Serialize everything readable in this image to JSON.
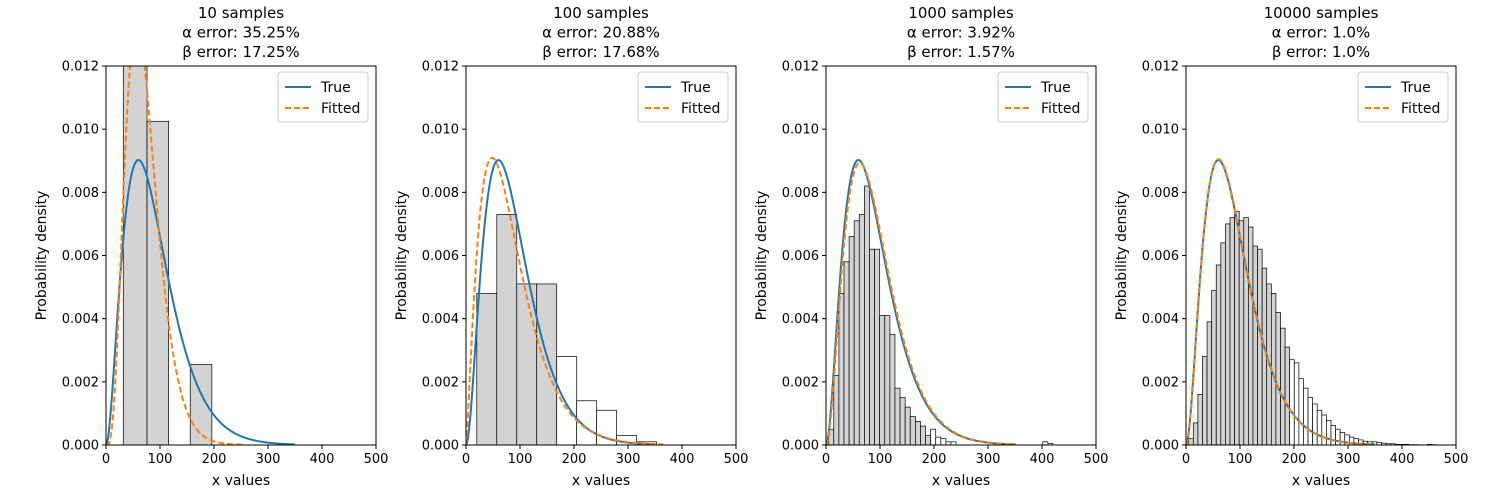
{
  "chart_data": [
    {
      "type": "bar",
      "title": [
        "10 samples",
        "α error: 35.25%",
        "β error: 17.25%"
      ],
      "xlabel": "x values",
      "ylabel": "Probability density",
      "xlim": [
        0,
        500
      ],
      "ylim": [
        0,
        0.012
      ],
      "xticks": [
        "0",
        "100",
        "200",
        "300",
        "400",
        "500"
      ],
      "yticks": [
        "0.000",
        "0.002",
        "0.004",
        "0.006",
        "0.008",
        "0.010",
        "0.012"
      ],
      "legend": {
        "position": "top-right",
        "entries": [
          "True",
          "Fitted"
        ]
      },
      "histogram": {
        "edges": [
          32,
          76,
          116,
          156,
          196
        ],
        "densities": [
          0.0123,
          0.01025,
          0.0,
          0.00255
        ],
        "max_edge": 196
      },
      "series": [
        {
          "name": "True",
          "color": "#1f77b4",
          "style": "solid",
          "shape": 3,
          "scale": 30,
          "x_range": [
            0,
            350
          ]
        },
        {
          "name": "Fitted",
          "color": "#ff7f0e",
          "style": "dashed",
          "shape": 4.8,
          "scale": 15,
          "x_range": [
            0,
            252
          ]
        }
      ]
    },
    {
      "type": "bar",
      "title": [
        "100 samples",
        "α error: 20.88%",
        "β error: 17.68%"
      ],
      "xlabel": "x values",
      "ylabel": "Probability density",
      "xlim": [
        0,
        500
      ],
      "ylim": [
        0,
        0.012
      ],
      "xticks": [
        "0",
        "100",
        "200",
        "300",
        "400",
        "500"
      ],
      "yticks": [
        "0.000",
        "0.002",
        "0.004",
        "0.006",
        "0.008",
        "0.010",
        "0.012"
      ],
      "legend": {
        "position": "top-right",
        "entries": [
          "True",
          "Fitted"
        ]
      },
      "histogram": {
        "edges": [
          20,
          57,
          94,
          131,
          168,
          205,
          242,
          279,
          316,
          353
        ],
        "densities": [
          0.0048,
          0.0073,
          0.0051,
          0.0051,
          0.0028,
          0.0014,
          0.0011,
          0.0003,
          0.0001
        ],
        "max_edge": 168
      },
      "series": [
        {
          "name": "True",
          "color": "#1f77b4",
          "style": "solid",
          "shape": 3,
          "scale": 30,
          "x_range": [
            0,
            350
          ]
        },
        {
          "name": "Fitted",
          "color": "#ff7f0e",
          "style": "dashed",
          "shape": 2.37,
          "scale": 35.3,
          "x_range": [
            0,
            365
          ]
        }
      ]
    },
    {
      "type": "bar",
      "title": [
        "1000 samples",
        "α error: 3.92%",
        "β error: 1.57%"
      ],
      "xlabel": "x values",
      "ylabel": "Probability density",
      "xlim": [
        0,
        500
      ],
      "ylim": [
        0,
        0.012
      ],
      "xticks": [
        "0",
        "100",
        "200",
        "300",
        "400",
        "500"
      ],
      "yticks": [
        "0.000",
        "0.002",
        "0.004",
        "0.006",
        "0.008",
        "0.010",
        "0.012"
      ],
      "legend": {
        "position": "top-right",
        "entries": [
          "True",
          "Fitted"
        ]
      },
      "histogram": {
        "edges": [
          5,
          14.4,
          23.9,
          33.3,
          42.8,
          52.2,
          61.6,
          71.1,
          80.5,
          89.9,
          99.4,
          108.8,
          118.3,
          127.7,
          137.1,
          146.6,
          156,
          165.5,
          174.9,
          184.3,
          193.8,
          203.2,
          212.6,
          222.1,
          231.5,
          241,
          250.4,
          259.8,
          269.3,
          278.7,
          288.1,
          297.6,
          307,
          316.5,
          325.9,
          335.3,
          344.8,
          354.2,
          363.6,
          373.1,
          382.5,
          392,
          401.4,
          410.8,
          420.3,
          429.7
        ],
        "densities": [
          0.0005,
          0.0022,
          0.0048,
          0.0058,
          0.0066,
          0.0071,
          0.0073,
          0.0082,
          0.0062,
          0.0062,
          0.0041,
          0.0041,
          0.0035,
          0.0018,
          0.0015,
          0.0012,
          0.0009,
          0.00075,
          0.0006,
          0.0003,
          0.0005,
          0.00025,
          0.0002,
          0.0001,
          0.0001,
          0,
          0,
          0,
          0,
          0,
          0,
          0,
          0,
          0,
          0,
          0,
          0,
          0,
          0,
          0,
          0,
          0,
          0.0001,
          5e-05,
          0
        ],
        "max_edge": 193.8
      },
      "series": [
        {
          "name": "True",
          "color": "#1f77b4",
          "style": "solid",
          "shape": 3,
          "scale": 30,
          "x_range": [
            0,
            352
          ]
        },
        {
          "name": "Fitted",
          "color": "#ff7f0e",
          "style": "dashed",
          "shape": 3.12,
          "scale": 29.5,
          "x_range": [
            0,
            352
          ]
        }
      ]
    },
    {
      "type": "bar",
      "title": [
        "10000 samples",
        "α error: 1.0%",
        "β error: 1.0%"
      ],
      "xlabel": "x values",
      "ylabel": "Probability density",
      "xlim": [
        0,
        500
      ],
      "ylim": [
        0,
        0.012
      ],
      "xticks": [
        "0",
        "100",
        "200",
        "300",
        "400",
        "500"
      ],
      "yticks": [
        "0.000",
        "0.002",
        "0.004",
        "0.006",
        "0.008",
        "0.010",
        "0.012"
      ],
      "legend": {
        "position": "top-right",
        "entries": [
          "True",
          "Fitted"
        ]
      },
      "histogram": {
        "bin_start": 5,
        "bin_width": 8.5,
        "densities": [
          0.0002,
          0.0007,
          0.0016,
          0.0028,
          0.0039,
          0.0049,
          0.0057,
          0.0064,
          0.007,
          0.0072,
          0.0074,
          0.0071,
          0.0072,
          0.0069,
          0.0063,
          0.0062,
          0.0056,
          0.0051,
          0.0048,
          0.0042,
          0.0037,
          0.0031,
          0.0027,
          0.0026,
          0.0021,
          0.0018,
          0.0015,
          0.0013,
          0.0011,
          0.00095,
          0.00078,
          0.00062,
          0.0005,
          0.0004,
          0.00032,
          0.00025,
          0.0002,
          0.00016,
          0.00012,
          0.0001,
          0.0001,
          8e-05,
          6e-05,
          4e-05,
          4e-05,
          2e-05,
          2e-05,
          2e-05,
          1e-05,
          1e-05,
          0,
          0,
          2e-05,
          1e-05
        ],
        "max_edge": 199
      },
      "series": [
        {
          "name": "True",
          "color": "#1f77b4",
          "style": "solid",
          "shape": 3,
          "scale": 30,
          "x_range": [
            0,
            350
          ]
        },
        {
          "name": "Fitted",
          "color": "#ff7f0e",
          "style": "dashed",
          "shape": 3.03,
          "scale": 29.7,
          "x_range": [
            0,
            350
          ]
        }
      ]
    }
  ]
}
